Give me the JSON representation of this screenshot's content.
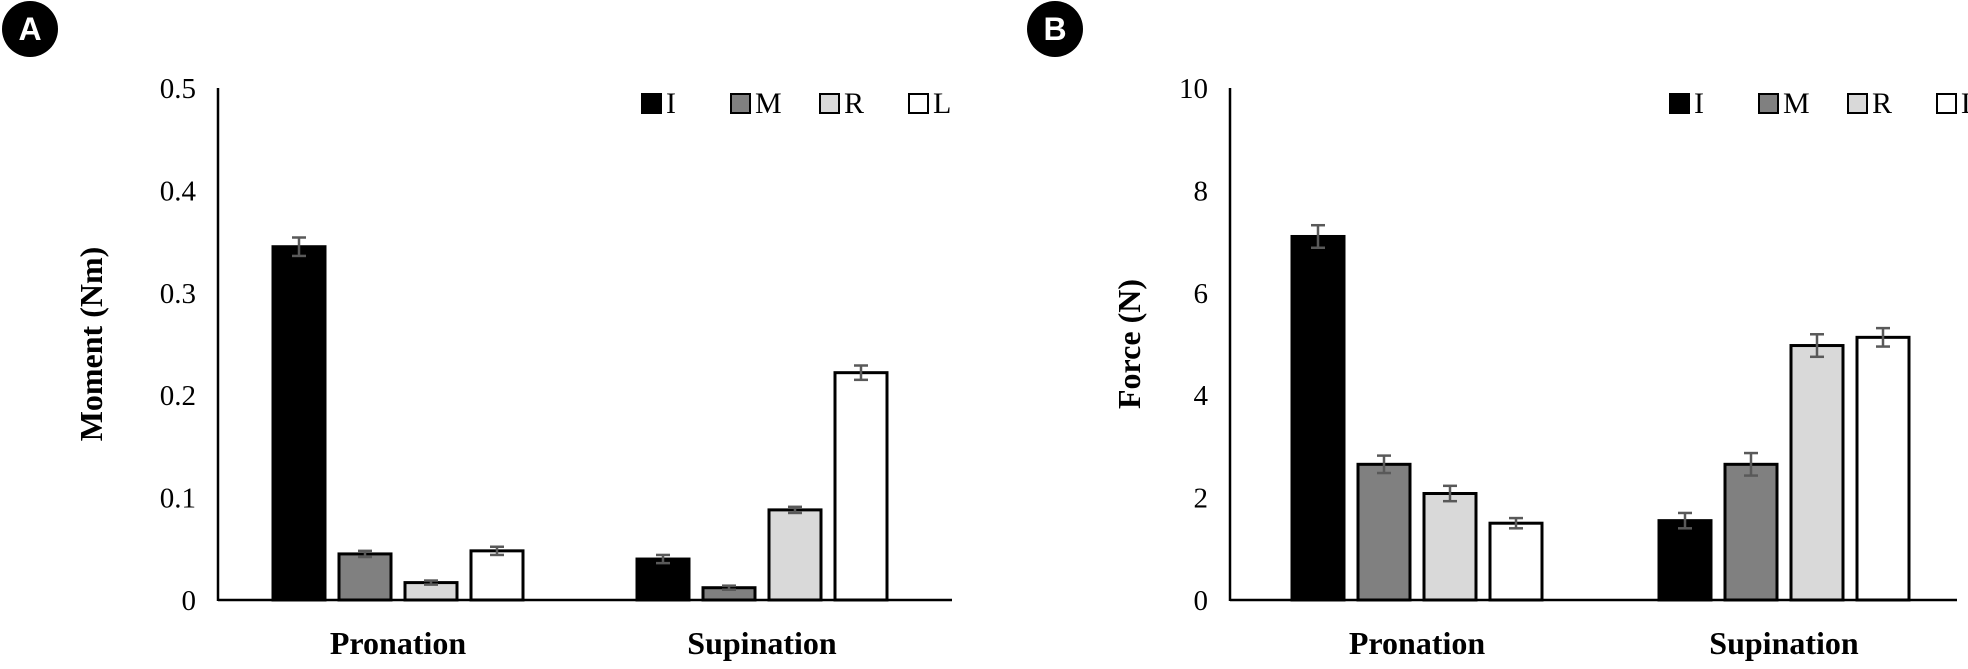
{
  "chart_data": [
    {
      "panel_label": "A",
      "type": "bar",
      "categories": [
        "Pronation",
        "Supination"
      ],
      "series": [
        {
          "name": "I",
          "values": [
            0.345,
            0.04
          ],
          "errors": [
            0.009,
            0.004
          ]
        },
        {
          "name": "M",
          "values": [
            0.045,
            0.012
          ],
          "errors": [
            0.003,
            0.002
          ]
        },
        {
          "name": "R",
          "values": [
            0.017,
            0.088
          ],
          "errors": [
            0.002,
            0.003
          ]
        },
        {
          "name": "L",
          "values": [
            0.048,
            0.222
          ],
          "errors": [
            0.004,
            0.007
          ]
        }
      ],
      "ylabel": "Moment (Nm)",
      "xlabel": "",
      "ylim": [
        0,
        0.5
      ],
      "yticks": [
        "0",
        "0.1",
        "0.2",
        "0.3",
        "0.4",
        "0.5"
      ],
      "grid": false,
      "legend_position": "top-right"
    },
    {
      "panel_label": "B",
      "type": "bar",
      "categories": [
        "Pronation",
        "Supination"
      ],
      "series": [
        {
          "name": "I",
          "values": [
            7.1,
            1.55
          ],
          "errors": [
            0.22,
            0.15
          ]
        },
        {
          "name": "M",
          "values": [
            2.65,
            2.65
          ],
          "errors": [
            0.17,
            0.22
          ]
        },
        {
          "name": "R",
          "values": [
            2.08,
            4.97
          ],
          "errors": [
            0.15,
            0.22
          ]
        },
        {
          "name": "L",
          "values": [
            1.5,
            5.13
          ],
          "errors": [
            0.1,
            0.18
          ]
        }
      ],
      "ylabel": "Force (N)",
      "xlabel": "",
      "ylim": [
        0,
        10
      ],
      "yticks": [
        "0",
        "2",
        "4",
        "6",
        "8",
        "10"
      ],
      "grid": false,
      "legend_position": "top-right"
    }
  ],
  "colors": {
    "I": "#000000",
    "M": "#808080",
    "R": "#d9d9d9",
    "L": "#ffffff",
    "bar_outline": "#000000",
    "error_bar": "#595959",
    "axis": "#000000",
    "badge_fill": "#000000",
    "badge_text": "#ffffff"
  }
}
